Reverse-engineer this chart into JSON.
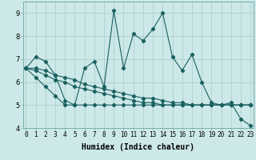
{
  "xlabel": "Humidex (Indice chaleur)",
  "background_color": "#cce8e8",
  "line_color": "#1a6060",
  "x_values": [
    0,
    1,
    2,
    3,
    4,
    5,
    6,
    7,
    8,
    9,
    10,
    11,
    12,
    13,
    14,
    15,
    16,
    17,
    18,
    19,
    20,
    21,
    22,
    23
  ],
  "y_main": [
    6.6,
    7.1,
    6.9,
    6.3,
    5.2,
    5.0,
    6.6,
    6.9,
    5.8,
    9.1,
    6.6,
    8.1,
    7.8,
    8.3,
    9.0,
    7.1,
    6.5,
    7.2,
    6.0,
    5.1,
    5.0,
    5.1,
    4.4,
    4.1
  ],
  "y_top": [
    6.6,
    6.6,
    6.5,
    6.3,
    6.2,
    6.1,
    5.9,
    5.8,
    5.7,
    5.6,
    5.5,
    5.4,
    5.3,
    5.3,
    5.2,
    5.1,
    5.1,
    5.0,
    5.0,
    5.0,
    5.0,
    5.0,
    5.0,
    5.0
  ],
  "y_mid1": [
    6.6,
    6.5,
    6.3,
    6.1,
    6.0,
    5.8,
    5.7,
    5.6,
    5.5,
    5.4,
    5.3,
    5.2,
    5.1,
    5.1,
    5.0,
    5.0,
    5.0,
    5.0,
    5.0,
    5.0,
    5.0,
    5.0,
    5.0,
    5.0
  ],
  "y_bot": [
    6.6,
    6.2,
    5.8,
    5.4,
    5.0,
    5.0,
    5.0,
    5.0,
    5.0,
    5.0,
    5.0,
    5.0,
    5.0,
    5.0,
    5.0,
    5.0,
    5.0,
    5.0,
    5.0,
    5.0,
    5.0,
    5.0,
    5.0,
    5.0
  ],
  "ylim_min": 4.0,
  "ylim_max": 9.5,
  "xlim_min": -0.3,
  "xlim_max": 23.3,
  "yticks": [
    4,
    5,
    6,
    7,
    8,
    9
  ],
  "xticks": [
    0,
    1,
    2,
    3,
    4,
    5,
    6,
    7,
    8,
    9,
    10,
    11,
    12,
    13,
    14,
    15,
    16,
    17,
    18,
    19,
    20,
    21,
    22,
    23
  ],
  "grid_color": "#afd0d0",
  "marker": "D",
  "markersize": 2.2,
  "linewidth": 0.8,
  "xlabel_fontsize": 7,
  "tick_fontsize": 5.5
}
